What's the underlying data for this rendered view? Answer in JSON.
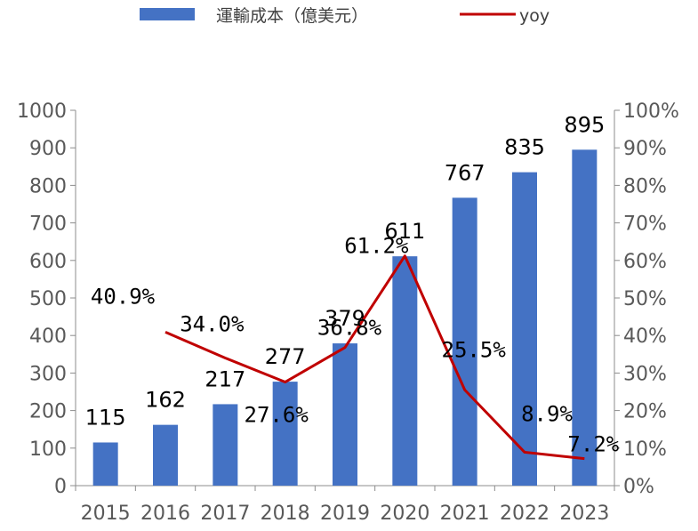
{
  "chart_data": {
    "type": "bar",
    "categories": [
      "2015",
      "2016",
      "2017",
      "2018",
      "2019",
      "2020",
      "2021",
      "2022",
      "2023"
    ],
    "series": [
      {
        "name": "運輸成本（億美元）",
        "type": "bar",
        "axis": "left",
        "values": [
          115,
          162,
          217,
          277,
          379,
          611,
          767,
          835,
          895
        ],
        "labels": [
          "115",
          "162",
          "217",
          "277",
          "379",
          "611",
          "767",
          "835",
          "895"
        ],
        "color": "#4472C4"
      },
      {
        "name": "yoy",
        "type": "line",
        "axis": "right",
        "values": [
          null,
          40.9,
          34.0,
          27.6,
          36.8,
          61.2,
          25.5,
          8.9,
          7.2
        ],
        "labels": [
          "",
          "40.9%",
          "34.0%",
          "27.6%",
          "36.8%",
          "61.2%",
          "25.5%",
          "8.9%",
          "7.2%"
        ],
        "color": "#C00000"
      }
    ],
    "y_left": {
      "ylim": [
        0,
        1000
      ],
      "ticks": [
        "0",
        "100",
        "200",
        "300",
        "400",
        "500",
        "600",
        "700",
        "800",
        "900",
        "1000"
      ]
    },
    "y_right": {
      "ylim": [
        0,
        100
      ],
      "ticks": [
        "0%",
        "10%",
        "20%",
        "30%",
        "40%",
        "50%",
        "60%",
        "70%",
        "80%",
        "90%",
        "100%"
      ]
    },
    "grid": false,
    "legend_position": "top"
  }
}
